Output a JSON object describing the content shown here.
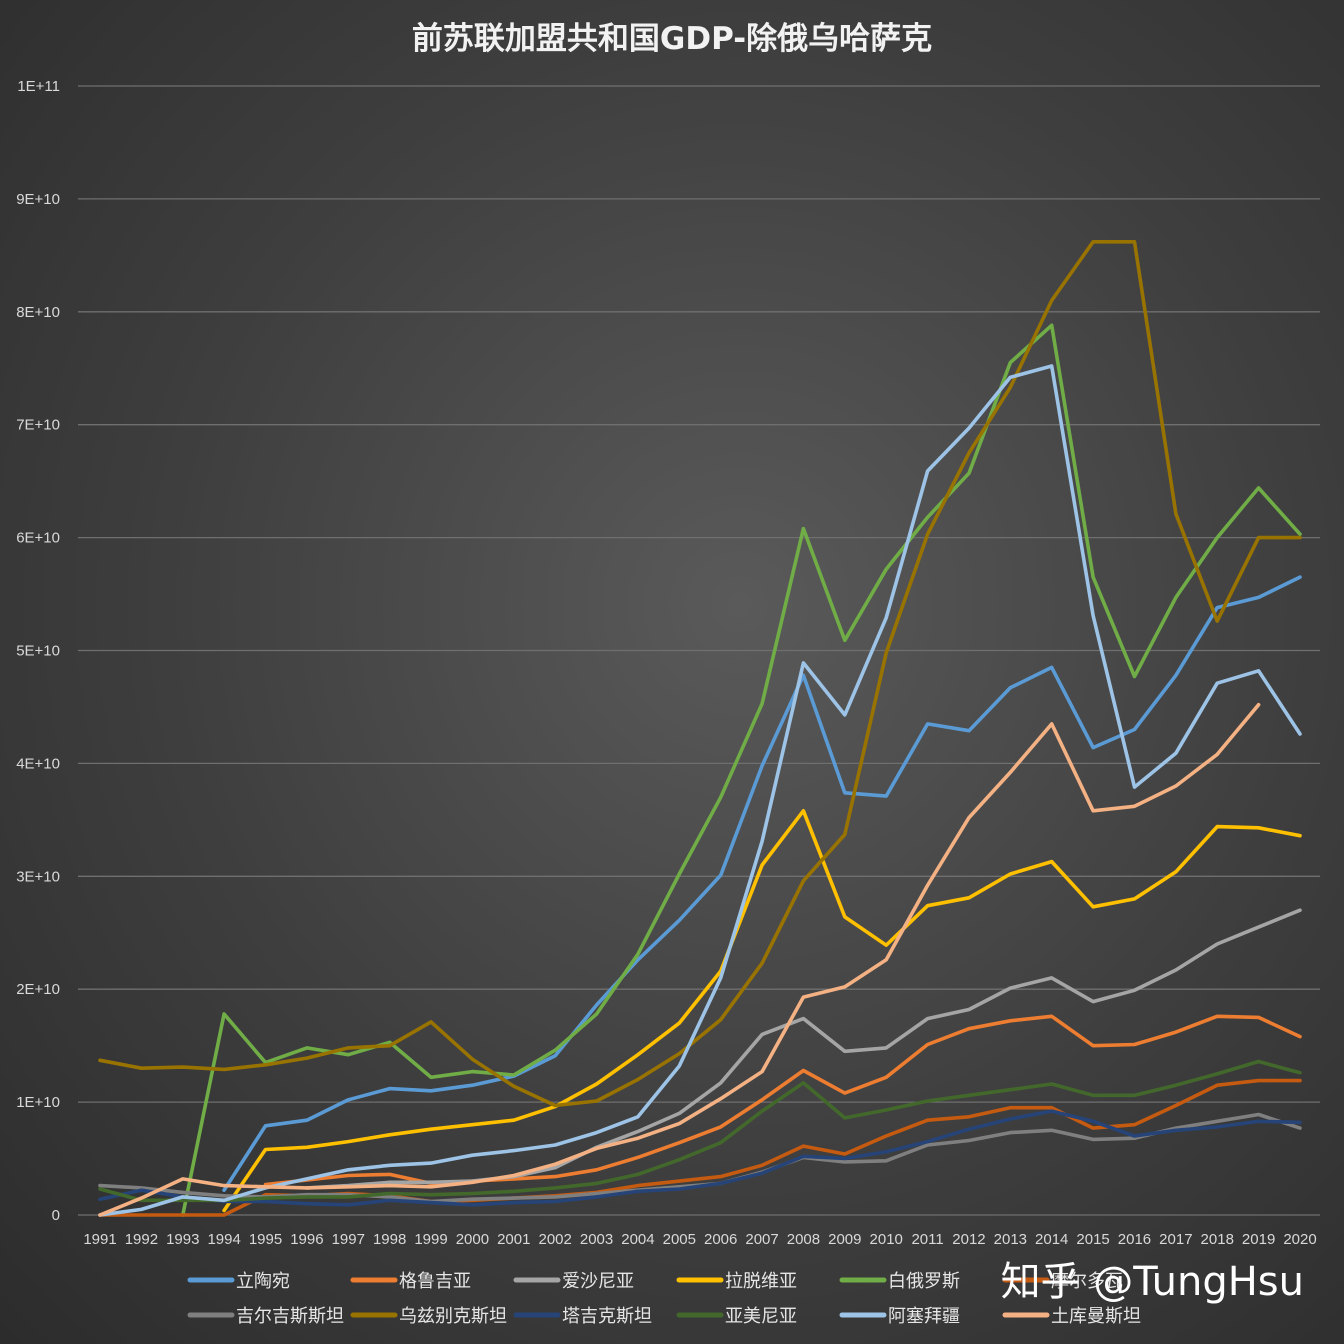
{
  "watermark": "知乎 @TungHsu",
  "chart_data": {
    "type": "line",
    "title": "前苏联加盟共和国GDP-除俄乌哈萨克",
    "xlabel": "",
    "ylabel": "",
    "ylim": [
      0,
      100000000000
    ],
    "yticks": [
      0,
      10000000000,
      20000000000,
      30000000000,
      40000000000,
      50000000000,
      60000000000,
      70000000000,
      80000000000,
      90000000000,
      100000000000
    ],
    "ytick_labels": [
      "0",
      "1E+10",
      "2E+10",
      "3E+10",
      "4E+10",
      "5E+10",
      "6E+10",
      "7E+10",
      "8E+10",
      "9E+10",
      "1E+11"
    ],
    "grid": true,
    "legend_position": "bottom",
    "x": [
      "1991",
      "1992",
      "1993",
      "1994",
      "1995",
      "1996",
      "1997",
      "1998",
      "1999",
      "2000",
      "2001",
      "2002",
      "2003",
      "2004",
      "2005",
      "2006",
      "2007",
      "2008",
      "2009",
      "2010",
      "2011",
      "2012",
      "2013",
      "2014",
      "2015",
      "2016",
      "2017",
      "2018",
      "2019",
      "2020"
    ],
    "units": "1E+9",
    "series": [
      {
        "name": "立陶宛",
        "color": "#5b9bd5",
        "values": [
          null,
          null,
          null,
          2.2,
          7.9,
          8.4,
          10.2,
          11.2,
          11.0,
          11.5,
          12.3,
          14.1,
          18.6,
          22.6,
          26.1,
          30.1,
          39.8,
          47.8,
          37.4,
          37.1,
          43.5,
          42.9,
          46.7,
          48.5,
          41.4,
          43.0,
          47.8,
          53.8,
          54.7,
          56.5
        ]
      },
      {
        "name": "格鲁吉亚",
        "color": "#ed7d31",
        "values": [
          null,
          null,
          null,
          null,
          2.7,
          3.1,
          3.5,
          3.6,
          2.8,
          3.0,
          3.2,
          3.4,
          4.0,
          5.1,
          6.4,
          7.8,
          10.2,
          12.8,
          10.8,
          12.2,
          15.1,
          16.5,
          17.2,
          17.6,
          15.0,
          15.1,
          16.2,
          17.6,
          17.5,
          15.8
        ]
      },
      {
        "name": "爱沙尼亚",
        "color": "#a5a5a5",
        "values": [
          null,
          null,
          null,
          null,
          null,
          2.4,
          2.6,
          2.9,
          2.9,
          3.0,
          3.4,
          4.2,
          6.0,
          7.4,
          9.0,
          11.7,
          16.0,
          17.4,
          14.5,
          14.8,
          17.4,
          18.2,
          20.1,
          21.0,
          18.9,
          19.9,
          21.7,
          24.0,
          25.5,
          27.0
        ]
      },
      {
        "name": "拉脱维亚",
        "color": "#ffc000",
        "values": [
          null,
          null,
          null,
          0.4,
          5.8,
          6.0,
          6.5,
          7.1,
          7.6,
          8.0,
          8.4,
          9.6,
          11.6,
          14.2,
          17.0,
          21.6,
          31.0,
          35.8,
          26.4,
          23.9,
          27.4,
          28.1,
          30.2,
          31.3,
          27.3,
          28.0,
          30.4,
          34.4,
          34.3,
          33.6
        ]
      },
      {
        "name": "白俄罗斯",
        "color": "#70ad47",
        "values": [
          null,
          null,
          0.0,
          17.8,
          13.5,
          14.8,
          14.2,
          15.3,
          12.2,
          12.7,
          12.4,
          14.6,
          17.8,
          23.1,
          30.2,
          37.0,
          45.3,
          60.8,
          50.9,
          57.2,
          61.8,
          65.7,
          75.5,
          78.8,
          56.5,
          47.7,
          54.7,
          60.0,
          64.4,
          60.3
        ]
      },
      {
        "name": "摩尔多瓦",
        "color": "#c55a11",
        "values": [
          0.0,
          0.0,
          0.0,
          0.0,
          1.8,
          1.7,
          1.9,
          1.7,
          1.2,
          1.3,
          1.5,
          1.7,
          2.0,
          2.6,
          3.0,
          3.4,
          4.4,
          6.1,
          5.4,
          7.0,
          8.4,
          8.7,
          9.5,
          9.5,
          7.7,
          8.0,
          9.7,
          11.5,
          11.9,
          11.9
        ]
      },
      {
        "name": "吉尔吉斯斯坦",
        "color": "#7f7f7f",
        "values": [
          2.6,
          2.4,
          2.0,
          1.7,
          1.6,
          1.8,
          1.8,
          1.6,
          1.2,
          1.4,
          1.5,
          1.6,
          1.9,
          2.2,
          2.5,
          2.8,
          3.8,
          5.1,
          4.7,
          4.8,
          6.2,
          6.6,
          7.3,
          7.5,
          6.7,
          6.8,
          7.7,
          8.3,
          8.9,
          7.7
        ]
      },
      {
        "name": "乌兹别克斯坦",
        "color": "#997300",
        "values": [
          13.7,
          13.0,
          13.1,
          12.9,
          13.3,
          13.9,
          14.8,
          15.0,
          17.1,
          13.8,
          11.4,
          9.7,
          10.1,
          12.0,
          14.3,
          17.3,
          22.3,
          29.6,
          33.7,
          49.8,
          60.3,
          67.5,
          73.3,
          81.0,
          86.2,
          86.2,
          62.1,
          52.6,
          60.0,
          60.0
        ]
      },
      {
        "name": "塔吉克斯坦",
        "color": "#264478",
        "values": [
          1.4,
          2.2,
          1.6,
          1.2,
          1.2,
          1.0,
          0.9,
          1.3,
          1.1,
          0.9,
          1.1,
          1.2,
          1.6,
          2.1,
          2.3,
          2.8,
          3.7,
          5.2,
          5.0,
          5.6,
          6.5,
          7.6,
          8.5,
          9.2,
          8.3,
          7.0,
          7.5,
          7.8,
          8.3,
          8.2
        ]
      },
      {
        "name": "亚美尼亚",
        "color": "#43682b",
        "values": [
          2.3,
          1.3,
          1.3,
          1.3,
          1.5,
          1.6,
          1.6,
          1.9,
          1.8,
          1.9,
          2.1,
          2.4,
          2.8,
          3.6,
          4.9,
          6.4,
          9.2,
          11.7,
          8.6,
          9.3,
          10.1,
          10.6,
          11.1,
          11.6,
          10.6,
          10.6,
          11.5,
          12.5,
          13.6,
          12.6
        ]
      },
      {
        "name": "阿塞拜疆",
        "color": "#9dc3e6",
        "values": [
          0.0,
          0.5,
          1.6,
          1.3,
          2.4,
          3.2,
          4.0,
          4.4,
          4.6,
          5.3,
          5.7,
          6.2,
          7.3,
          8.7,
          13.2,
          21.0,
          33.1,
          48.9,
          44.3,
          52.9,
          65.9,
          69.7,
          74.2,
          75.2,
          53.1,
          37.9,
          40.9,
          47.1,
          48.2,
          42.6
        ]
      },
      {
        "name": "土库曼斯坦",
        "color": "#f4b183",
        "values": [
          0.0,
          1.5,
          3.2,
          2.6,
          2.5,
          2.4,
          2.5,
          2.6,
          2.5,
          2.9,
          3.5,
          4.5,
          5.9,
          6.8,
          8.1,
          10.3,
          12.7,
          19.3,
          20.2,
          22.6,
          29.2,
          35.2,
          39.2,
          43.5,
          35.8,
          36.2,
          38.0,
          40.8,
          45.2,
          null
        ]
      }
    ]
  }
}
